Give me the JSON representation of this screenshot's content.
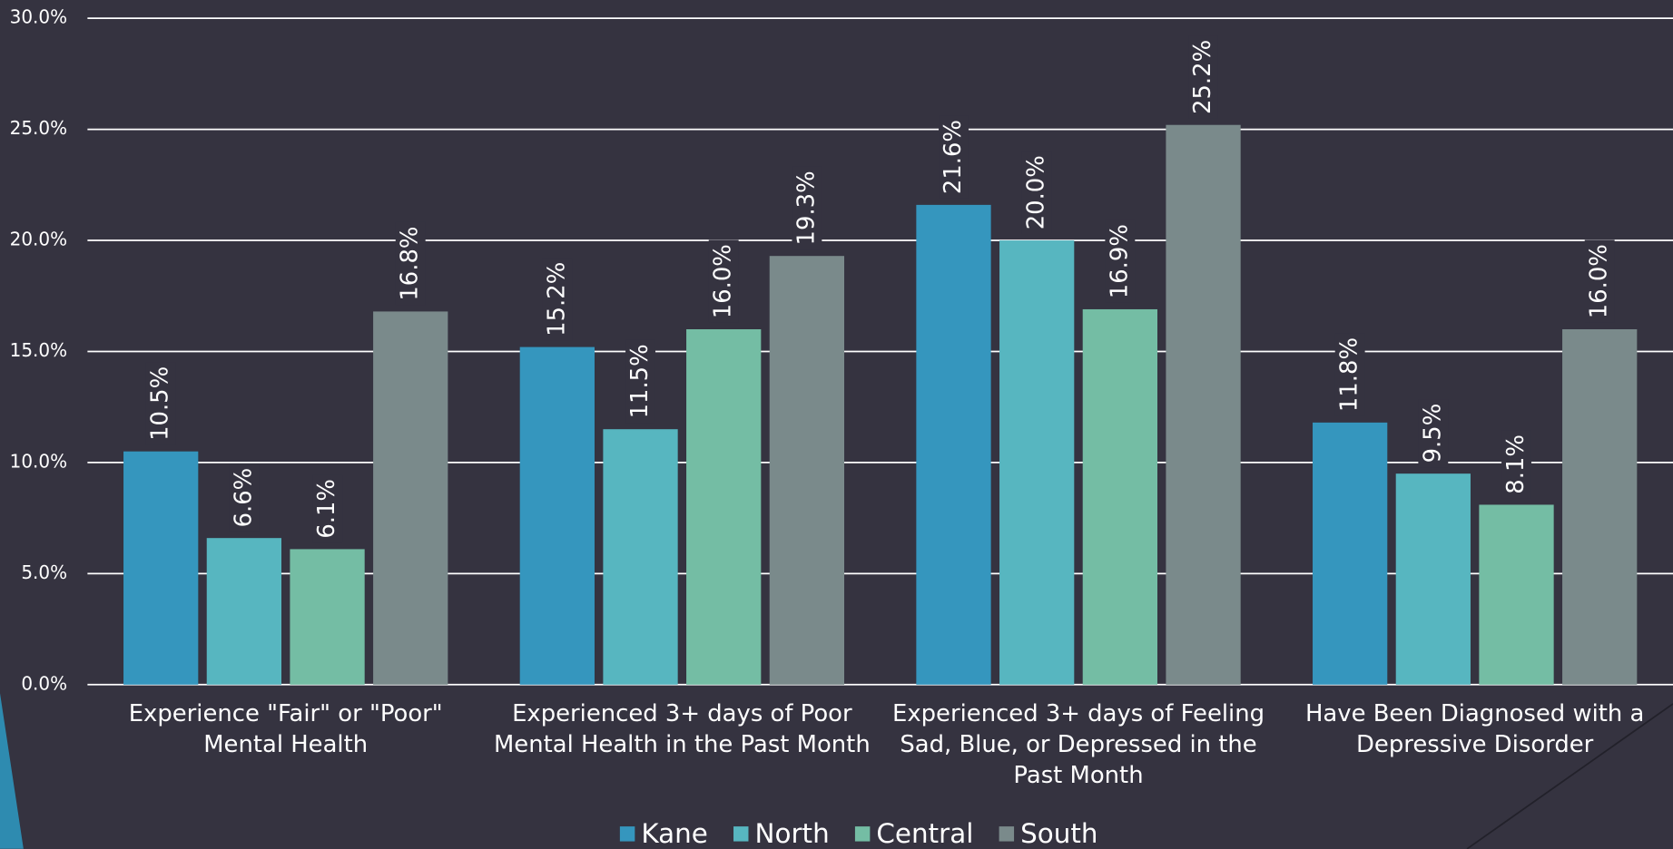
{
  "chart_data": {
    "type": "bar",
    "categories": [
      "Experience \"Fair\" or \"Poor\" Mental Health",
      "Experienced 3+ days of Poor Mental Health in the Past Month",
      "Experienced 3+ days of Feeling Sad, Blue, or Depressed in the Past Month",
      "Have Been Diagnosed with a Depressive Disorder"
    ],
    "series": [
      {
        "name": "Kane",
        "color": "#3596be",
        "values": [
          10.5,
          15.2,
          21.6,
          11.8
        ],
        "value_labels": [
          "10.5%",
          "15.2%",
          "21.6%",
          "11.8%"
        ]
      },
      {
        "name": "North",
        "color": "#57b6c0",
        "values": [
          6.6,
          11.5,
          20.0,
          9.5
        ],
        "value_labels": [
          "6.6%",
          "11.5%",
          "20.0%",
          "9.5%"
        ]
      },
      {
        "name": "Central",
        "color": "#74bda4",
        "values": [
          6.1,
          16.0,
          16.9,
          8.1
        ],
        "value_labels": [
          "6.1%",
          "16.0%",
          "16.9%",
          "8.1%"
        ]
      },
      {
        "name": "South",
        "color": "#7a8a8b",
        "values": [
          16.8,
          19.3,
          25.2,
          16.0
        ],
        "value_labels": [
          "16.8%",
          "19.3%",
          "25.2%",
          "16.0%"
        ]
      }
    ],
    "ylim": [
      0,
      30
    ],
    "yticks": [
      {
        "value": 0,
        "label": "0.0%"
      },
      {
        "value": 5,
        "label": "5.0%"
      },
      {
        "value": 10,
        "label": "10.0%"
      },
      {
        "value": 15,
        "label": "15.0%"
      },
      {
        "value": 20,
        "label": "20.0%"
      },
      {
        "value": 25,
        "label": "25.0%"
      },
      {
        "value": 30,
        "label": "30.0%"
      }
    ],
    "grid": true,
    "legend": "bottom"
  }
}
